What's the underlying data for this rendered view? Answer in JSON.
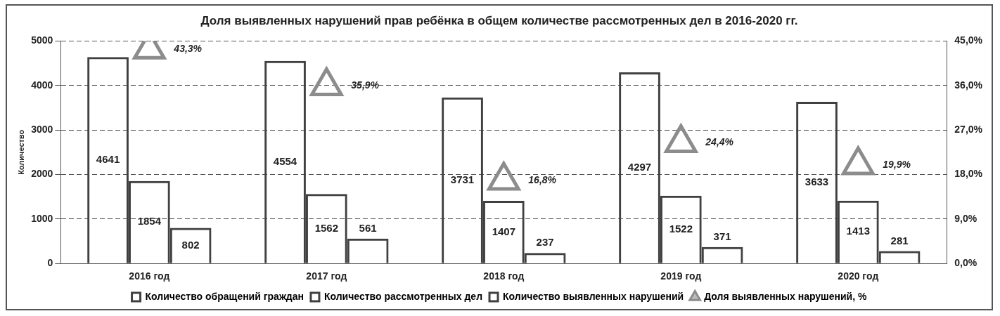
{
  "chart_data": {
    "type": "bar",
    "title": "Доля выявленных нарушений прав ребёнка в общем количестве рассмотренных дел в 2016-2020 гг.",
    "ylabel": "Количество",
    "categories": [
      "2016 год",
      "2017 год",
      "2018 год",
      "2019 год",
      "2020 год"
    ],
    "series": [
      {
        "name": "Количество обращений граждан",
        "color": "#404040",
        "values": [
          4641,
          4554,
          3731,
          4297,
          3633
        ],
        "value_labels": [
          "4641",
          "4554",
          "3731",
          "4297",
          "3633"
        ]
      },
      {
        "name": "Количество рассмотренных дел",
        "color": "#404040",
        "values": [
          1854,
          1562,
          1407,
          1522,
          1413
        ],
        "value_labels": [
          "1854",
          "1562",
          "1407",
          "1522",
          "1413"
        ]
      },
      {
        "name": "Количество выявленных нарушений",
        "color": "#404040",
        "values": [
          802,
          561,
          237,
          371,
          281
        ],
        "value_labels": [
          "802",
          "561",
          "237",
          "371",
          "281"
        ]
      },
      {
        "name": "Доля выявленных нарушений, %",
        "type": "scatter",
        "axis": "y2",
        "marker": "triangle",
        "color": "#8c8c8c",
        "values": [
          43.3,
          35.9,
          16.8,
          24.4,
          19.9
        ],
        "value_labels": [
          "43,3%",
          "35,9%",
          "16,8%",
          "24,4%",
          "19,9%"
        ]
      }
    ],
    "ylim": [
      0,
      5000
    ],
    "yticks": [
      0,
      1000,
      2000,
      3000,
      4000,
      5000
    ],
    "y2lim": [
      0,
      45
    ],
    "y2ticks": [
      {
        "value": 0,
        "label": "0,0%"
      },
      {
        "value": 9,
        "label": "9,0%"
      },
      {
        "value": 18,
        "label": "18,0%"
      },
      {
        "value": 27,
        "label": "27,0%"
      },
      {
        "value": 36,
        "label": "36,0%"
      },
      {
        "value": 45,
        "label": "45,0%"
      }
    ],
    "grid": "y",
    "legend": "bottom"
  }
}
